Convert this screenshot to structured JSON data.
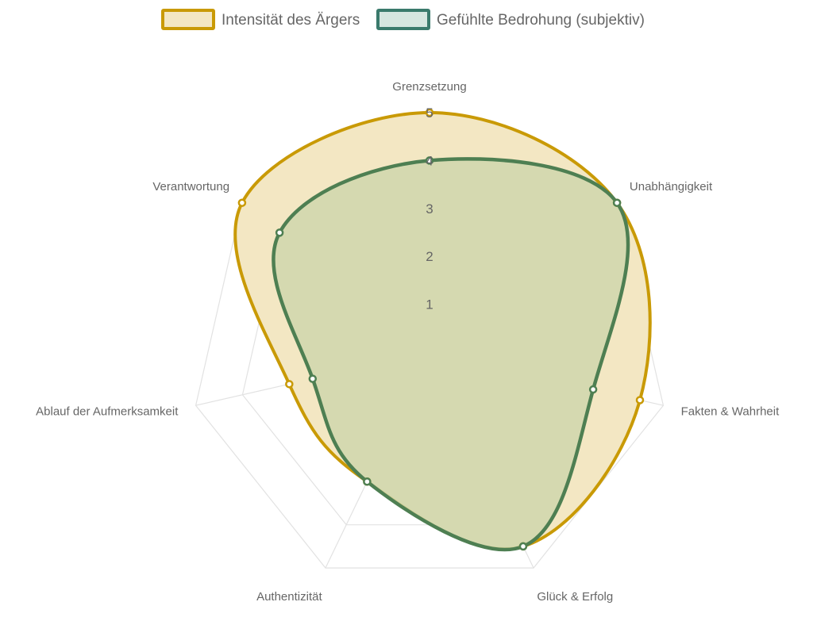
{
  "chart_data": {
    "type": "radar",
    "categories": [
      "Grenzsetzung",
      "Unabhängigkeit",
      "Fakten & Wahrheit",
      "Glück & Erfolg",
      "Authentizität",
      "Ablauf der Aufmerksamkeit",
      "Verantwortung"
    ],
    "series": [
      {
        "name": "Intensität des Ärgers",
        "values": [
          5,
          5,
          4.5,
          4.5,
          3,
          3,
          5
        ],
        "color": "#c99a06",
        "fill": "#f3e7c3"
      },
      {
        "name": "Gefühlte Bedrohung (subjektiv)",
        "values": [
          4,
          5,
          3.5,
          4.5,
          3,
          2.5,
          4
        ],
        "color": "#4e7f52",
        "fill": "#cfd6ad"
      }
    ],
    "rlim": [
      0,
      5
    ],
    "ticks": [
      "1",
      "2",
      "3",
      "4",
      "5"
    ],
    "legend": "top",
    "grid": true
  }
}
